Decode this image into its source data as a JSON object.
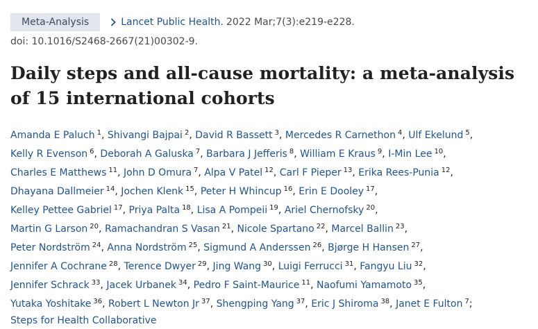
{
  "header": {
    "badge": "Meta-Analysis",
    "journal": "Lancet Public Health.",
    "citation": "2022 Mar;7(3):e219-e228.",
    "doi": "doi: 10.1016/S2468-2667(21)00302-9."
  },
  "title": "Daily steps and all-cause mortality: a meta-analysis of 15 international cohorts",
  "authors": [
    {
      "name": "Amanda E Paluch",
      "aff": "1"
    },
    {
      "name": "Shivangi Bajpai",
      "aff": "2"
    },
    {
      "name": "David R Bassett",
      "aff": "3"
    },
    {
      "name": "Mercedes R Carnethon",
      "aff": "4"
    },
    {
      "name": "Ulf Ekelund",
      "aff": "5"
    },
    {
      "name": "Kelly R Evenson",
      "aff": "6"
    },
    {
      "name": "Deborah A Galuska",
      "aff": "7"
    },
    {
      "name": "Barbara J Jefferis",
      "aff": "8"
    },
    {
      "name": "William E Kraus",
      "aff": "9"
    },
    {
      "name": "I-Min Lee",
      "aff": "10"
    },
    {
      "name": "Charles E Matthews",
      "aff": "11"
    },
    {
      "name": "John D Omura",
      "aff": "7"
    },
    {
      "name": "Alpa V Patel",
      "aff": "12"
    },
    {
      "name": "Carl F Pieper",
      "aff": "13"
    },
    {
      "name": "Erika Rees-Punia",
      "aff": "12"
    },
    {
      "name": "Dhayana Dallmeier",
      "aff": "14"
    },
    {
      "name": "Jochen Klenk",
      "aff": "15"
    },
    {
      "name": "Peter H Whincup",
      "aff": "16"
    },
    {
      "name": "Erin E Dooley",
      "aff": "17"
    },
    {
      "name": "Kelley Pettee Gabriel",
      "aff": "17"
    },
    {
      "name": "Priya Palta",
      "aff": "18"
    },
    {
      "name": "Lisa A Pompeii",
      "aff": "19"
    },
    {
      "name": "Ariel Chernofsky",
      "aff": "20"
    },
    {
      "name": "Martin G Larson",
      "aff": "20"
    },
    {
      "name": "Ramachandran S Vasan",
      "aff": "21"
    },
    {
      "name": "Nicole Spartano",
      "aff": "22"
    },
    {
      "name": "Marcel Ballin",
      "aff": "23"
    },
    {
      "name": "Peter Nordström",
      "aff": "24"
    },
    {
      "name": "Anna Nordström",
      "aff": "25"
    },
    {
      "name": "Sigmund A Anderssen",
      "aff": "26"
    },
    {
      "name": "Bjørge H Hansen",
      "aff": "27"
    },
    {
      "name": "Jennifer A Cochrane",
      "aff": "28"
    },
    {
      "name": "Terence Dwyer",
      "aff": "29"
    },
    {
      "name": "Jing Wang",
      "aff": "30"
    },
    {
      "name": "Luigi Ferrucci",
      "aff": "31"
    },
    {
      "name": "Fangyu Liu",
      "aff": "32"
    },
    {
      "name": "Jennifer Schrack",
      "aff": "33"
    },
    {
      "name": "Jacek Urbanek",
      "aff": "34"
    },
    {
      "name": "Pedro F Saint-Maurice",
      "aff": "11"
    },
    {
      "name": "Naofumi Yamamoto",
      "aff": "35"
    },
    {
      "name": "Yutaka Yoshitake",
      "aff": "36"
    },
    {
      "name": "Robert L Newton Jr",
      "aff": "37"
    },
    {
      "name": "Shengping Yang",
      "aff": "37"
    },
    {
      "name": "Eric J Shiroma",
      "aff": "38"
    },
    {
      "name": "Janet E Fulton",
      "aff": "7"
    }
  ],
  "author_lines": [
    5,
    5,
    5,
    4,
    4,
    4,
    4,
    5,
    4,
    5
  ],
  "collaborative": "Steps for Health Collaborative",
  "link_color": "#205493",
  "icons": {
    "journal": "chevron-right-icon"
  }
}
